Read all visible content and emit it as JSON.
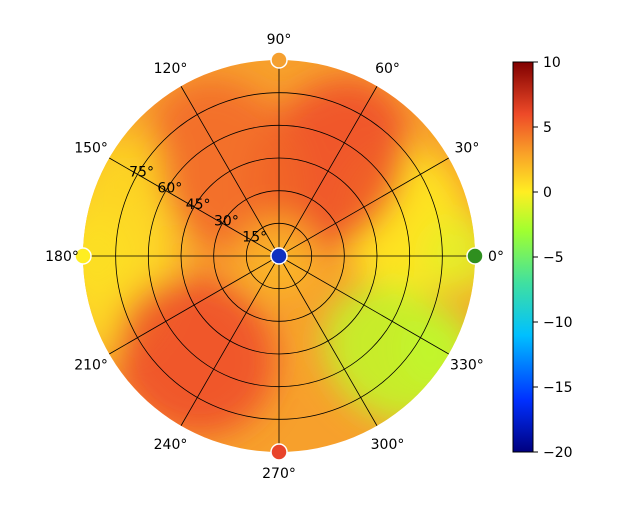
{
  "chart_data": {
    "type": "heatmap",
    "projection": "polar",
    "title": "",
    "radial_axis": {
      "range": [
        0,
        90
      ],
      "ticks": [
        15,
        30,
        45,
        60,
        75
      ],
      "tick_labels": [
        "15°",
        "30°",
        "45°",
        "60°",
        "75°"
      ],
      "label_angle_deg": 150
    },
    "angular_axis": {
      "ticks": [
        0,
        30,
        60,
        90,
        120,
        150,
        180,
        210,
        240,
        270,
        300,
        330
      ],
      "tick_labels": [
        "0°",
        "30°",
        "60°",
        "90°",
        "120°",
        "150°",
        "180°",
        "210°",
        "240°",
        "270°",
        "300°",
        "330°"
      ]
    },
    "grid": true,
    "colorbar": {
      "min": -20,
      "max": 10,
      "ticks": [
        10,
        5,
        0,
        -5,
        -10,
        -15,
        -20
      ],
      "tick_labels": [
        "10",
        "5",
        "0",
        "−5",
        "−10",
        "−15",
        "−20"
      ],
      "colormap": "jet-like",
      "stops": [
        {
          "value": -20,
          "color": "#00007f"
        },
        {
          "value": -16,
          "color": "#0030ff"
        },
        {
          "value": -11,
          "color": "#00c0ff"
        },
        {
          "value": -7,
          "color": "#40e0a0"
        },
        {
          "value": -3,
          "color": "#a0ff30"
        },
        {
          "value": 0,
          "color": "#ffee22"
        },
        {
          "value": 3,
          "color": "#f9a028"
        },
        {
          "value": 6,
          "color": "#ee4a28"
        },
        {
          "value": 10,
          "color": "#800000"
        }
      ]
    },
    "approx_field": {
      "note": "approximate value map by zenith (r) and azimuth (theta)",
      "center_value": -20,
      "sectors": [
        {
          "theta_range": [
            0,
            30
          ],
          "r_range": [
            30,
            90
          ],
          "value": 0
        },
        {
          "theta_range": [
            30,
            90
          ],
          "r_range": [
            20,
            75
          ],
          "value": 6
        },
        {
          "theta_range": [
            90,
            150
          ],
          "r_range": [
            20,
            75
          ],
          "value": 5
        },
        {
          "theta_range": [
            150,
            210
          ],
          "r_range": [
            60,
            90
          ],
          "value": 0.5
        },
        {
          "theta_range": [
            200,
            260
          ],
          "r_range": [
            40,
            80
          ],
          "value": 6
        },
        {
          "theta_range": [
            300,
            340
          ],
          "r_range": [
            50,
            90
          ],
          "value": -2
        }
      ]
    },
    "markers": [
      {
        "theta": 0,
        "r": 90,
        "color": "#2f8f1f",
        "value": -5
      },
      {
        "theta": 90,
        "r": 90,
        "color": "#f5a030",
        "value": 2
      },
      {
        "theta": 180,
        "r": 90,
        "color": "#ffee22",
        "value": 0
      },
      {
        "theta": 270,
        "r": 90,
        "color": "#e8442a",
        "value": 6
      },
      {
        "theta": 0,
        "r": 0,
        "color": "#1030c0",
        "value": -18
      }
    ]
  }
}
